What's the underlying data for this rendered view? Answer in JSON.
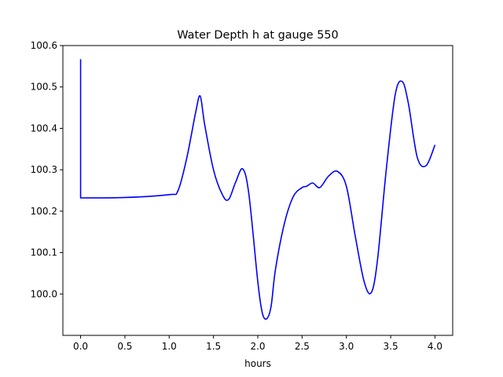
{
  "chart_data": {
    "type": "line",
    "title": "Water Depth h at gauge 550",
    "xlabel": "hours",
    "ylabel": "",
    "xlim": [
      -0.2,
      4.2
    ],
    "ylim": [
      99.9,
      100.6
    ],
    "xticks": [
      0.0,
      0.5,
      1.0,
      1.5,
      2.0,
      2.5,
      3.0,
      3.5,
      4.0
    ],
    "xtick_labels": [
      "0.0",
      "0.5",
      "1.0",
      "1.5",
      "2.0",
      "2.5",
      "3.0",
      "3.5",
      "4.0"
    ],
    "yticks": [
      100.0,
      100.1,
      100.2,
      100.3,
      100.4,
      100.5,
      100.6
    ],
    "ytick_labels": [
      "100.0",
      "100.1",
      "100.2",
      "100.3",
      "100.4",
      "100.5",
      "100.6"
    ],
    "grid": false,
    "line_color": "#0000ff",
    "series": [
      {
        "x": [
          0.0,
          0.0,
          0.0,
          0.5,
          1.0,
          1.1,
          1.2,
          1.3,
          1.35,
          1.4,
          1.5,
          1.6,
          1.67,
          1.75,
          1.83,
          1.9,
          2.0,
          2.05,
          2.1,
          2.15,
          2.2,
          2.3,
          2.4,
          2.5,
          2.55,
          2.62,
          2.7,
          2.8,
          2.9,
          3.0,
          3.1,
          3.2,
          3.28,
          3.35,
          3.45,
          3.55,
          3.63,
          3.7,
          3.8,
          3.9,
          4.0
        ],
        "y": [
          100.567,
          100.55,
          100.232,
          100.233,
          100.24,
          100.25,
          100.33,
          100.44,
          100.478,
          100.41,
          100.3,
          100.24,
          100.228,
          100.27,
          100.302,
          100.24,
          100.03,
          99.955,
          99.94,
          99.97,
          100.06,
          100.17,
          100.235,
          100.257,
          100.26,
          100.268,
          100.257,
          100.285,
          100.296,
          100.26,
          100.14,
          100.03,
          100.003,
          100.08,
          100.3,
          100.48,
          100.513,
          100.46,
          100.33,
          100.31,
          100.36
        ]
      }
    ]
  }
}
